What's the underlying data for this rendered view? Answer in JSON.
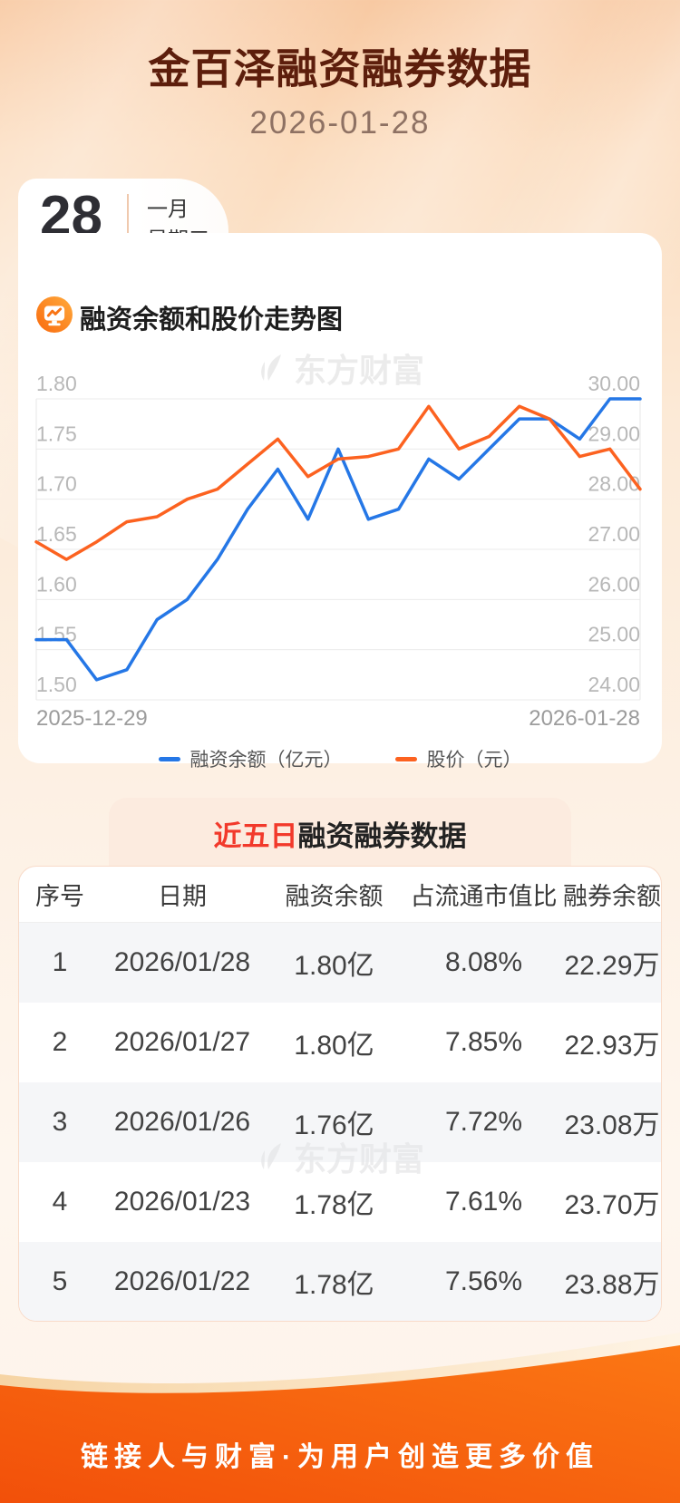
{
  "header": {
    "title": "金百泽融资融券数据",
    "date": "2026-01-28"
  },
  "calendar": {
    "day": "28",
    "month": "一月",
    "weekday": "星期三"
  },
  "chart_section": {
    "title": "融资余额和股价走势图",
    "watermark": "东方财富",
    "chart_data": {
      "type": "line",
      "x_labels_shown": [
        "2025-12-29",
        "2026-01-28"
      ],
      "num_points": 21,
      "series": [
        {
          "name": "融资余额（亿元）",
          "axis": "left",
          "color": "#2577e6",
          "values": [
            1.56,
            1.56,
            1.52,
            1.53,
            1.58,
            1.6,
            1.64,
            1.69,
            1.73,
            1.68,
            1.75,
            1.68,
            1.69,
            1.74,
            1.72,
            1.75,
            1.78,
            1.78,
            1.76,
            1.8,
            1.8
          ]
        },
        {
          "name": "股价（元）",
          "axis": "right",
          "color": "#fc6220",
          "values": [
            27.15,
            26.8,
            27.15,
            27.55,
            27.65,
            28.0,
            28.2,
            28.7,
            29.2,
            28.45,
            28.8,
            28.85,
            29.0,
            29.85,
            29.0,
            29.25,
            29.85,
            29.6,
            28.85,
            29.0,
            28.2
          ]
        }
      ],
      "left_axis": {
        "min": 1.5,
        "max": 1.8,
        "ticks": [
          "1.80",
          "1.75",
          "1.70",
          "1.65",
          "1.60",
          "1.55",
          "1.50"
        ]
      },
      "right_axis": {
        "min": 24.0,
        "max": 30.0,
        "ticks": [
          "30.00",
          "29.00",
          "28.00",
          "27.00",
          "26.00",
          "25.00",
          "24.00"
        ]
      },
      "grid": true,
      "legend_position": "bottom"
    }
  },
  "table_section": {
    "title_highlight": "近五日",
    "title_rest": "融资融券数据",
    "watermark": "东方财富",
    "columns": [
      "序号",
      "日期",
      "融资余额",
      "占流通市值比",
      "融券余额"
    ],
    "rows": [
      [
        "1",
        "2026/01/28",
        "1.80亿",
        "8.08%",
        "22.29万"
      ],
      [
        "2",
        "2026/01/27",
        "1.80亿",
        "7.85%",
        "22.93万"
      ],
      [
        "3",
        "2026/01/26",
        "1.76亿",
        "7.72%",
        "23.08万"
      ],
      [
        "4",
        "2026/01/23",
        "1.78亿",
        "7.61%",
        "23.70万"
      ],
      [
        "5",
        "2026/01/22",
        "1.78亿",
        "7.56%",
        "23.88万"
      ]
    ]
  },
  "footer": {
    "slogan": "链接人与财富·为用户创造更多价值"
  },
  "colors": {
    "line_blue": "#2577e6",
    "line_orange": "#fc6220",
    "highlight_red": "#f2392b",
    "title_brown": "#5d1e0c",
    "footer_orange": "#f3550a",
    "header_box_bg": "#fcebdf"
  }
}
